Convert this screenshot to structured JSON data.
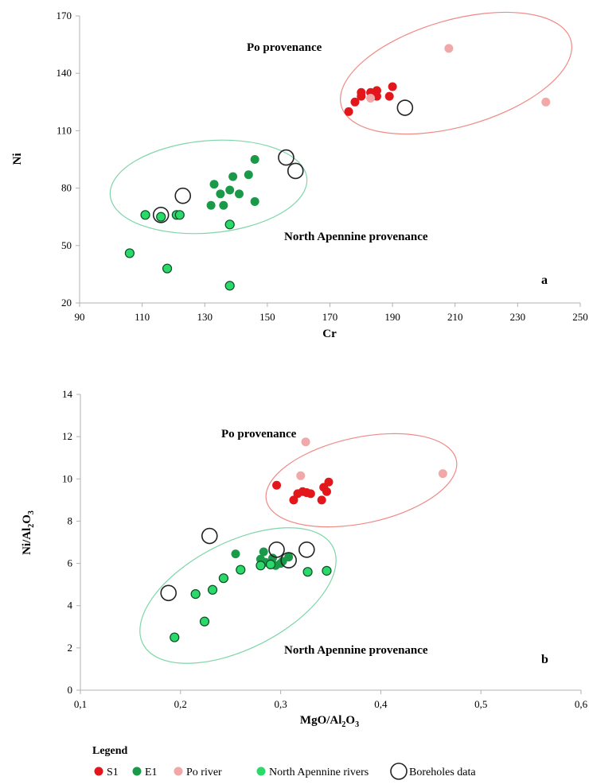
{
  "colors": {
    "S1": "#e3161b",
    "E1": "#1a9a48",
    "Po_river": "#f0a8a8",
    "North_Apennine_rivers": "#2bd96b",
    "Boreholes": "#ffffff",
    "po_ellipse": "#ef8a86",
    "na_ellipse": "#7fd6a8",
    "axis": "#b0b0b0"
  },
  "legend": {
    "title": "Legend",
    "items": [
      {
        "key": "S1",
        "label": "S1"
      },
      {
        "key": "E1",
        "label": "E1"
      },
      {
        "key": "Po_river",
        "label": "Po river"
      },
      {
        "key": "North_Apennine_rivers",
        "label": "North Apennine rivers"
      },
      {
        "key": "Boreholes",
        "label": "Boreholes data"
      }
    ]
  },
  "chart_data": [
    {
      "type": "scatter",
      "panel_label": "a",
      "xlabel": "Cr",
      "ylabel": "Ni",
      "xlim": [
        90,
        250
      ],
      "ylim": [
        20,
        170
      ],
      "xticks": [
        "90",
        "110",
        "130",
        "150",
        "170",
        "190",
        "210",
        "230",
        "250"
      ],
      "yticks": [
        "20",
        "50",
        "80",
        "110",
        "140",
        "170"
      ],
      "grid": false,
      "annotations": [
        "Po provenance",
        "North Apennine provenance"
      ],
      "series": [
        {
          "name": "S1",
          "points": [
            [
              176,
              120
            ],
            [
              178,
              125
            ],
            [
              180,
              128
            ],
            [
              180,
              130
            ],
            [
              183,
              130
            ],
            [
              185,
              128
            ],
            [
              185,
              131
            ],
            [
              189,
              128
            ],
            [
              190,
              133
            ]
          ]
        },
        {
          "name": "E1",
          "points": [
            [
              133,
              82
            ],
            [
              135,
              77
            ],
            [
              136,
              71
            ],
            [
              138,
              79
            ],
            [
              139,
              86
            ],
            [
              141,
              77
            ],
            [
              144,
              87
            ],
            [
              146,
              73
            ],
            [
              146,
              95
            ],
            [
              132,
              71
            ],
            [
              122,
              66
            ],
            [
              121,
              66
            ],
            [
              138,
              61
            ],
            [
              118,
              38
            ],
            [
              138,
              29
            ],
            [
              106,
              46
            ]
          ]
        },
        {
          "name": "Po river",
          "points": [
            [
              183,
              127
            ],
            [
              208,
              153
            ],
            [
              239,
              125
            ]
          ]
        },
        {
          "name": "North Apennine rivers",
          "points": [
            [
              111,
              66
            ],
            [
              116,
              65
            ],
            [
              121,
              66
            ],
            [
              122,
              66
            ],
            [
              138,
              61
            ],
            [
              118,
              38
            ],
            [
              138,
              29
            ],
            [
              106,
              46
            ]
          ]
        },
        {
          "name": "Boreholes data",
          "points": [
            [
              194,
              122
            ],
            [
              156,
              96
            ],
            [
              159,
              89
            ],
            [
              123,
              76
            ],
            [
              116,
              66
            ]
          ]
        }
      ]
    },
    {
      "type": "scatter",
      "panel_label": "b",
      "xlabel": "MgO/Al2O3",
      "ylabel": "Ni/Al2O3",
      "xlim": [
        0.1,
        0.6
      ],
      "ylim": [
        0,
        14
      ],
      "xticks": [
        "0,1",
        "0,2",
        "0,3",
        "0,4",
        "0,5",
        "0,6"
      ],
      "yticks": [
        "0",
        "2",
        "4",
        "6",
        "8",
        "10",
        "12",
        "14"
      ],
      "grid": false,
      "annotations": [
        "Po provenance",
        "North Apennine provenance"
      ],
      "series": [
        {
          "name": "S1",
          "points": [
            [
              0.296,
              9.7
            ],
            [
              0.313,
              9.0
            ],
            [
              0.317,
              9.3
            ],
            [
              0.322,
              9.4
            ],
            [
              0.326,
              9.35
            ],
            [
              0.33,
              9.3
            ],
            [
              0.341,
              9.0
            ],
            [
              0.343,
              9.6
            ],
            [
              0.346,
              9.4
            ],
            [
              0.348,
              9.85
            ]
          ]
        },
        {
          "name": "E1",
          "points": [
            [
              0.255,
              6.45
            ],
            [
              0.28,
              6.2
            ],
            [
              0.283,
              6.55
            ],
            [
              0.285,
              6.05
            ],
            [
              0.29,
              5.95
            ],
            [
              0.292,
              6.25
            ],
            [
              0.295,
              5.9
            ],
            [
              0.3,
              6.0
            ],
            [
              0.302,
              6.1
            ],
            [
              0.308,
              6.3
            ]
          ]
        },
        {
          "name": "Po river",
          "points": [
            [
              0.32,
              10.15
            ],
            [
              0.325,
              11.75
            ],
            [
              0.462,
              10.25
            ]
          ]
        },
        {
          "name": "North Apennine rivers",
          "points": [
            [
              0.194,
              2.5
            ],
            [
              0.215,
              4.55
            ],
            [
              0.224,
              3.25
            ],
            [
              0.232,
              4.75
            ],
            [
              0.243,
              5.3
            ],
            [
              0.26,
              5.7
            ],
            [
              0.327,
              5.6
            ],
            [
              0.346,
              5.65
            ],
            [
              0.28,
              5.9
            ],
            [
              0.29,
              5.95
            ]
          ]
        },
        {
          "name": "Boreholes data",
          "points": [
            [
              0.188,
              4.6
            ],
            [
              0.229,
              7.3
            ],
            [
              0.296,
              6.65
            ],
            [
              0.308,
              6.15
            ],
            [
              0.326,
              6.65
            ]
          ]
        }
      ]
    }
  ]
}
